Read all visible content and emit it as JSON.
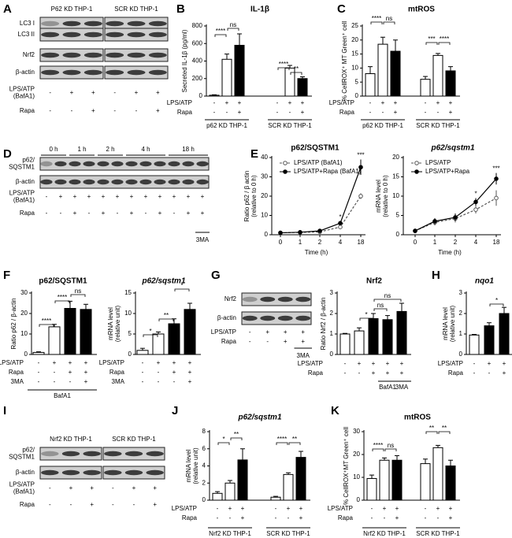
{
  "letters": [
    "A",
    "B",
    "C",
    "D",
    "E",
    "F",
    "G",
    "H",
    "I",
    "J",
    "K"
  ],
  "blots": [
    {
      "headers": [
        "P62 KD THP-1",
        "SCR KD THP-1"
      ],
      "bands": [
        [
          "LC3 I"
        ],
        [
          "LC3 II"
        ],
        [
          "Nrf2"
        ],
        [
          "β-actin"
        ]
      ],
      "conditions": [
        {
          "label": [
            "LPS/ATP",
            "(BafA1)"
          ],
          "values": [
            "-",
            "+",
            "+",
            "-",
            "+",
            "+"
          ]
        },
        {
          "label": [
            "Rapa"
          ],
          "values": [
            "-",
            "-",
            "+",
            "-",
            "-",
            "+"
          ]
        }
      ]
    },
    {
      "headers": [
        "0 h",
        "1 h",
        "2 h",
        "4 h",
        "18 h"
      ],
      "bands": [
        [
          "p62/",
          "SQSTM1"
        ],
        [
          "β-actin"
        ]
      ],
      "conditions": [
        {
          "label": [
            "LPS/ATP",
            "(BafA1)"
          ],
          "values": [
            "-",
            "+",
            "+",
            "+",
            "+",
            "+",
            "+",
            "+",
            "+",
            "+",
            "+",
            "+"
          ]
        },
        {
          "label": [
            "Rapa"
          ],
          "values": [
            "-",
            "-",
            "+",
            "-",
            "+",
            "-",
            "+",
            "-",
            "+",
            "-",
            "+",
            "+"
          ]
        }
      ],
      "notes": [
        "3MA"
      ]
    },
    {
      "bands": [
        [
          "Nrf2"
        ],
        [
          "β-actin"
        ]
      ],
      "conditions": [
        {
          "label": [
            "LPS/ATP"
          ],
          "values": [
            "-",
            "+",
            "+",
            "+"
          ]
        },
        {
          "label": [
            "Rapa"
          ],
          "values": [
            "-",
            "-",
            "+",
            "+"
          ]
        }
      ],
      "notes": [
        "3MA"
      ]
    },
    {
      "headers": [
        "Nrf2 KD THP-1",
        "SCR KD THP-1"
      ],
      "bands": [
        [
          "p62/",
          "SQSTM1"
        ],
        [
          "β-actin"
        ]
      ],
      "conditions": [
        {
          "label": [
            "LPS/ATP",
            "(BafA1)"
          ],
          "values": [
            "-",
            "+",
            "+",
            "-",
            "+",
            "+"
          ]
        },
        {
          "label": [
            "Rapa"
          ],
          "values": [
            "-",
            "-",
            "+",
            "-",
            "-",
            "+"
          ]
        }
      ]
    }
  ],
  "chart_data": [
    {
      "type": "bar",
      "title": "IL-1β",
      "ylabel": [
        "Secreted IL-1β (pg/ml)"
      ],
      "ylim": [
        0,
        800
      ],
      "yticks": [
        0,
        200,
        400,
        600,
        800
      ],
      "values": [
        10,
        420,
        580,
        0,
        320,
        200
      ],
      "errors": [
        5,
        60,
        130,
        0,
        30,
        20
      ],
      "colors": [
        "#ffffff",
        "#ffffff",
        "#000000",
        "#ffffff",
        "#ffffff",
        "#000000"
      ],
      "conditions": [
        {
          "label": "LPS/ATP",
          "values": [
            "-",
            "+",
            "+",
            "-",
            "+",
            "+"
          ]
        },
        {
          "label": "Rapa",
          "values": [
            "-",
            "-",
            "+",
            "-",
            "-",
            "+"
          ]
        }
      ],
      "groups": [
        "p62 KD THP-1",
        "SCR KD THP-1"
      ],
      "annotations": [
        "****",
        "ns",
        "****",
        "**"
      ]
    },
    {
      "type": "bar",
      "title": "mtROS",
      "ylabel": [
        "% CellROX⁺ MT Green⁺ cell"
      ],
      "ylim": [
        0,
        25
      ],
      "yticks": [
        0,
        5,
        10,
        15,
        20,
        25
      ],
      "values": [
        8,
        18.5,
        16,
        6,
        14.5,
        9
      ],
      "errors": [
        2.5,
        2.5,
        4,
        1,
        0.7,
        1.5
      ],
      "colors": [
        "#ffffff",
        "#ffffff",
        "#000000",
        "#ffffff",
        "#ffffff",
        "#000000"
      ],
      "conditions": [
        {
          "label": "LPS/ATP",
          "values": [
            "-",
            "+",
            "+",
            "-",
            "+",
            "+"
          ]
        },
        {
          "label": "Rapa",
          "values": [
            "-",
            "-",
            "+",
            "-",
            "-",
            "+"
          ]
        }
      ],
      "groups": [
        "p62 KD THP-1",
        "SCR KD THP-1"
      ],
      "annotations": [
        "****",
        "ns",
        "***",
        "****"
      ]
    },
    {
      "type": "line",
      "title": "p62/SQSTM1",
      "ylabel": [
        "Ratio p62 / β actin",
        "(relative to 0 h)"
      ],
      "xlabel": "Time (h)",
      "categories": [
        "0",
        "1",
        "2",
        "4",
        "18"
      ],
      "ylim": [
        0,
        40
      ],
      "yticks": [
        0,
        10,
        20,
        30,
        40
      ],
      "series": [
        {
          "name": "LPS/ATP (BafA1)",
          "color": "#555555",
          "line_style": "dashed",
          "marker": "open",
          "values": [
            1,
            1.2,
            1.5,
            4,
            20
          ],
          "errors": [
            0.2,
            0.2,
            0.3,
            0.8,
            1.5
          ]
        },
        {
          "name": "LPS/ATP+Rapa (BafA1)",
          "color": "#000000",
          "line_style": "solid",
          "marker": "filled",
          "values": [
            1,
            1.3,
            2,
            6,
            35
          ],
          "errors": [
            0.2,
            0.2,
            0.3,
            1,
            4
          ]
        }
      ],
      "annotations": [
        "*",
        "***"
      ]
    },
    {
      "type": "line",
      "title": "p62/sqstm1",
      "title_style": "italic",
      "ylabel": [
        "mRNA level",
        "(relative to 0 h)"
      ],
      "xlabel": "Time (h)",
      "categories": [
        "0",
        "1",
        "2",
        "4",
        "18"
      ],
      "ylim": [
        0,
        20
      ],
      "yticks": [
        0,
        5,
        10,
        15,
        20
      ],
      "series": [
        {
          "name": "LPS/ATP",
          "color": "#555555",
          "line_style": "dashed",
          "marker": "open",
          "values": [
            1,
            3.2,
            4.2,
            6.5,
            9.5
          ],
          "errors": [
            0.2,
            0.8,
            1,
            1,
            2
          ]
        },
        {
          "name": "LPS/ATP+Rapa",
          "color": "#000000",
          "line_style": "solid",
          "marker": "filled",
          "values": [
            1,
            3.5,
            4.5,
            8.5,
            14.5
          ],
          "errors": [
            0.2,
            0.8,
            1,
            1,
            1.5
          ]
        }
      ],
      "annotations": [
        "*",
        "***"
      ]
    },
    {
      "type": "bar",
      "title": "p62/SQSTM1",
      "ylabel": [
        "Ratio p62 / β-actin"
      ],
      "ylim": [
        0,
        30
      ],
      "yticks": [
        0,
        10,
        20,
        30
      ],
      "values": [
        1,
        13.5,
        22.5,
        22
      ],
      "errors": [
        0.3,
        1.2,
        3.5,
        2.5
      ],
      "colors": [
        "#ffffff",
        "#ffffff",
        "#000000",
        "#000000"
      ],
      "conditions": [
        {
          "label": "LPS/ATP",
          "values": [
            "-",
            "+",
            "+",
            "+"
          ]
        },
        {
          "label": "Rapa",
          "values": [
            "-",
            "-",
            "+",
            "+"
          ]
        },
        {
          "label": "3MA",
          "values": [
            "-",
            "-",
            "-",
            "+"
          ]
        }
      ],
      "groups": [
        "BafA1"
      ],
      "annotations": [
        "****",
        "****",
        "ns"
      ]
    },
    {
      "type": "bar",
      "title": "p62/sqstm1",
      "title_style": "italic",
      "ylabel": [
        "mRNA level",
        "(relative unit)"
      ],
      "ylim": [
        0,
        15
      ],
      "yticks": [
        0,
        5,
        10,
        15
      ],
      "values": [
        1,
        5,
        7.5,
        11
      ],
      "errors": [
        0.5,
        0.5,
        1.2,
        1.5
      ],
      "colors": [
        "#ffffff",
        "#ffffff",
        "#000000",
        "#000000"
      ],
      "conditions": [
        {
          "label": "LPS/ATP",
          "values": [
            "-",
            "+",
            "+",
            "+"
          ]
        },
        {
          "label": "Rapa",
          "values": [
            "-",
            "-",
            "+",
            "+"
          ]
        },
        {
          "label": "3MA",
          "values": [
            "-",
            "-",
            "-",
            "+"
          ]
        }
      ],
      "annotations": [
        "*",
        "**",
        "*"
      ]
    },
    {
      "type": "bar",
      "title": "Nrf2",
      "ylabel": [
        "Ratio Nrf2 / β-actin"
      ],
      "ylim": [
        0,
        3
      ],
      "yticks": [
        0,
        1,
        2,
        3
      ],
      "values": [
        1,
        1.15,
        1.75,
        1.7,
        2.1
      ],
      "errors": [
        0.03,
        0.15,
        0.25,
        0.2,
        0.4
      ],
      "colors": [
        "#ffffff",
        "#ffffff",
        "#000000",
        "#000000",
        "#000000"
      ],
      "conditions": [
        {
          "label": "LPS/ATP",
          "values": [
            "-",
            "+",
            "+",
            "+",
            "+"
          ]
        },
        {
          "label": "Rapa",
          "values": [
            "-",
            "-",
            "+",
            "+",
            "+"
          ]
        }
      ],
      "groups": [
        "BafA1",
        "3MA"
      ],
      "annotations": [
        "*",
        "ns",
        "ns"
      ]
    },
    {
      "type": "bar",
      "title": "nqo1",
      "title_style": "italic",
      "ylabel": [
        "mRNA level",
        "(relative unit)"
      ],
      "ylim": [
        0,
        3
      ],
      "yticks": [
        0,
        1,
        2,
        3
      ],
      "values": [
        0.95,
        1.4,
        2.0
      ],
      "errors": [
        0.03,
        0.15,
        0.3
      ],
      "colors": [
        "#ffffff",
        "#000000",
        "#000000"
      ],
      "conditions": [
        {
          "label": "LPS/ATP",
          "values": [
            "-",
            "+",
            "+"
          ]
        },
        {
          "label": "Rapa",
          "values": [
            "-",
            "-",
            "+"
          ]
        }
      ],
      "annotations": [
        "*"
      ]
    },
    {
      "type": "bar",
      "title": "p62/sqstm1",
      "title_style": "italic",
      "ylabel": [
        "mRNA level",
        "(relative unit)"
      ],
      "ylim": [
        0,
        8
      ],
      "yticks": [
        0,
        2,
        4,
        6,
        8
      ],
      "values": [
        0.8,
        2,
        4.7,
        0.35,
        3,
        5
      ],
      "errors": [
        0.2,
        0.3,
        1.3,
        0.1,
        0.2,
        0.7
      ],
      "colors": [
        "#ffffff",
        "#ffffff",
        "#000000",
        "#ffffff",
        "#ffffff",
        "#000000"
      ],
      "conditions": [
        {
          "label": "LPS/ATP",
          "values": [
            "-",
            "+",
            "+",
            "-",
            "+",
            "+"
          ]
        },
        {
          "label": "Rapa",
          "values": [
            "-",
            "-",
            "+",
            "-",
            "-",
            "+"
          ]
        }
      ],
      "groups": [
        "Nrf2 KD THP-1",
        "SCR KD THP-1"
      ],
      "annotations": [
        "*",
        "**",
        "****",
        "**"
      ]
    },
    {
      "type": "bar",
      "title": "mtROS",
      "ylabel": [
        "% CellROX⁺MT Green⁺ cell"
      ],
      "ylim": [
        0,
        30
      ],
      "yticks": [
        0,
        10,
        20,
        30
      ],
      "values": [
        9.5,
        17.5,
        17.5,
        16,
        23,
        15
      ],
      "errors": [
        1.5,
        1,
        2,
        2,
        1,
        2.5
      ],
      "colors": [
        "#ffffff",
        "#ffffff",
        "#000000",
        "#ffffff",
        "#ffffff",
        "#000000"
      ],
      "conditions": [
        {
          "label": "LPS/ATP",
          "values": [
            "-",
            "+",
            "+",
            "-",
            "+",
            "+"
          ]
        },
        {
          "label": "Rapa",
          "values": [
            "-",
            "-",
            "+",
            "-",
            "-",
            "+"
          ]
        }
      ],
      "groups": [
        "Nrf2 KD THP-1",
        "SCR KD THP-1"
      ],
      "annotations": [
        "****",
        "ns",
        "**",
        "**"
      ]
    }
  ]
}
